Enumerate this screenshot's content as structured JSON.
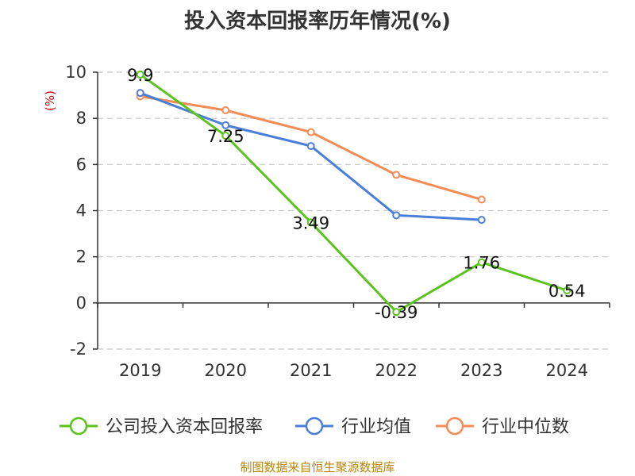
{
  "chart_data": {
    "type": "line",
    "title": "投入资本回报率历年情况(%)",
    "ylabel": "(%)",
    "xlabel": "",
    "categories": [
      "2019",
      "2020",
      "2021",
      "2022",
      "2023",
      "2024"
    ],
    "ylim": [
      -2,
      10
    ],
    "yticks": [
      -2,
      0,
      2,
      4,
      6,
      8,
      10
    ],
    "grid": true,
    "legend_position": "bottom",
    "series": [
      {
        "name": "公司投入资本回报率",
        "color": "#5cc21f",
        "values": [
          9.9,
          7.25,
          3.49,
          -0.39,
          1.76,
          0.54
        ],
        "labels": [
          "9.9",
          "7.25",
          "3.49",
          "-0.39",
          "1.76",
          "0.54"
        ]
      },
      {
        "name": "行业均值",
        "color": "#4a7ed8",
        "values": [
          9.1,
          7.7,
          6.8,
          3.8,
          3.6,
          null
        ]
      },
      {
        "name": "行业中位数",
        "color": "#f58c55",
        "values": [
          8.95,
          8.35,
          7.4,
          5.55,
          4.48,
          null
        ]
      }
    ]
  },
  "source": "制图数据来自恒生聚源数据库"
}
